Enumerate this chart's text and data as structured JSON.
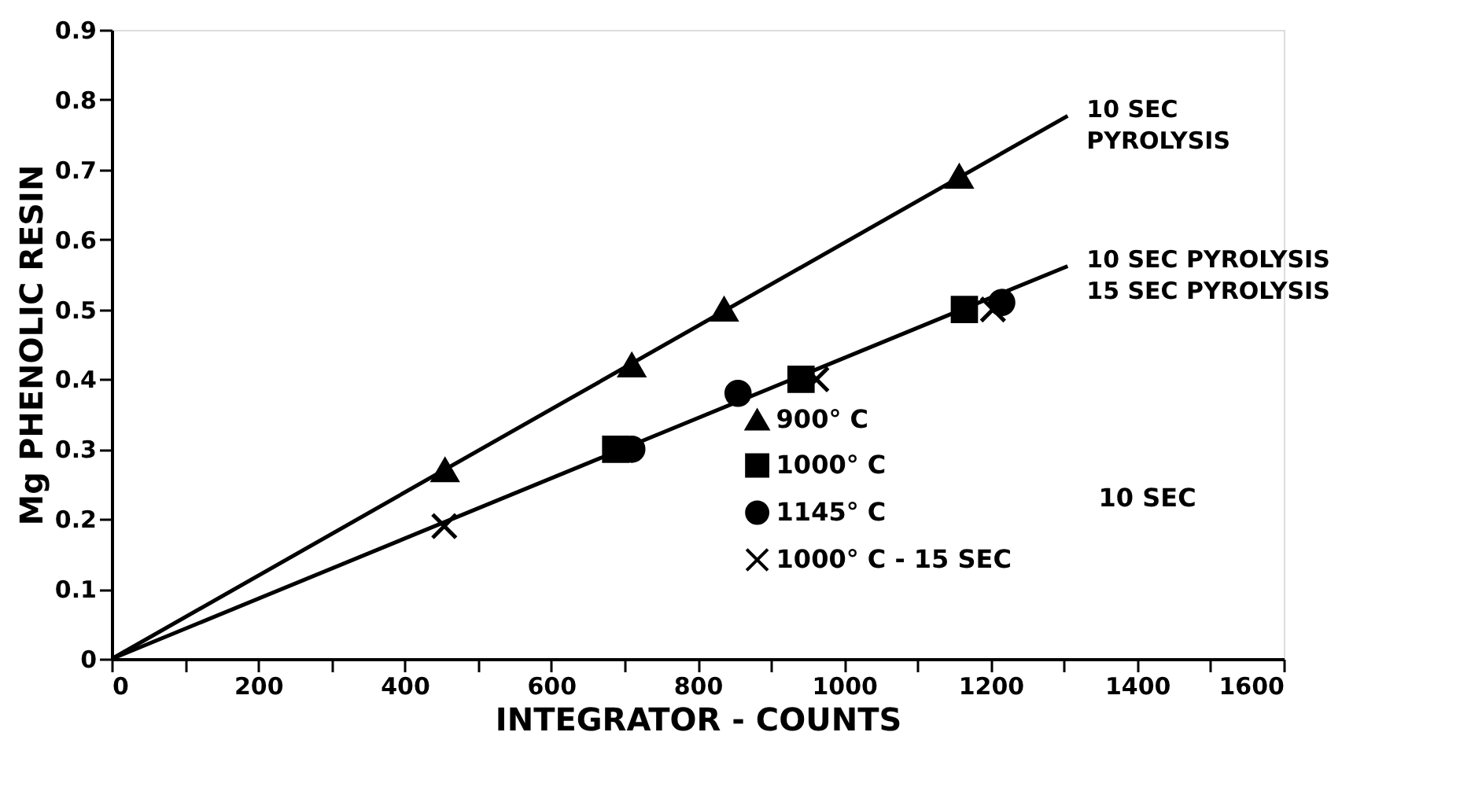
{
  "chart_data": {
    "type": "scatter",
    "xlabel": "INTEGRATOR - COUNTS",
    "ylabel": "Mg PHENOLIC RESIN",
    "xlim": [
      0,
      1600
    ],
    "ylim": [
      0,
      0.9
    ],
    "xticks": [
      0,
      {
        "value": 100,
        "label": null
      },
      200,
      {
        "value": 300,
        "label": null
      },
      400,
      {
        "value": 500,
        "label": null
      },
      600,
      {
        "value": 700,
        "label": null
      },
      800,
      {
        "value": 900,
        "label": null
      },
      1000,
      {
        "value": 1100,
        "label": null
      },
      1200,
      {
        "value": 1300,
        "label": null
      },
      1400,
      {
        "value": 1500,
        "label": null
      },
      1600
    ],
    "yticks": [
      0,
      0.1,
      0.2,
      0.3,
      0.4,
      0.5,
      0.6,
      0.7,
      0.8,
      0.9
    ],
    "grid": false,
    "legend": "bottom right",
    "line_style": "solid",
    "series": [
      {
        "type": "line",
        "color": "#000000",
        "marker": "none",
        "x": [
          0,
          1305
        ],
        "values": [
          0,
          0.777
        ]
      },
      {
        "type": "line",
        "color": "#000000",
        "marker": "none",
        "x": [
          0,
          1305
        ],
        "values": [
          0,
          0.562
        ]
      },
      {
        "name": "900° C",
        "color": "#000000",
        "marker": "triangle",
        "x": [
          455,
          710,
          836,
          1157
        ],
        "values": [
          0.27,
          0.42,
          0.5,
          0.69
        ]
      },
      {
        "name": "1000° C",
        "color": "#000000",
        "marker": "square",
        "x": [
          688,
          941,
          1164
        ],
        "values": [
          0.3,
          0.4,
          0.5
        ]
      },
      {
        "name": "1145° C",
        "color": "#000000",
        "marker": "circle",
        "x": [
          710,
          855,
          1215
        ],
        "values": [
          0.3,
          0.38,
          0.51
        ]
      },
      {
        "name": "1000° C - 15 SEC",
        "color": "#000000",
        "marker": "cross",
        "x": [
          454,
          962,
          1203
        ],
        "values": [
          0.19,
          0.4,
          0.5
        ]
      }
    ],
    "annotations": [
      {
        "text": "10 SEC\nPYROLYSIS",
        "x": 1305,
        "y": 0.777
      },
      {
        "text": "10 SEC PYROLYSIS\n15 SEC PYROLYSIS",
        "x": 1305,
        "y": 0.562
      },
      "10 SEC"
    ]
  }
}
